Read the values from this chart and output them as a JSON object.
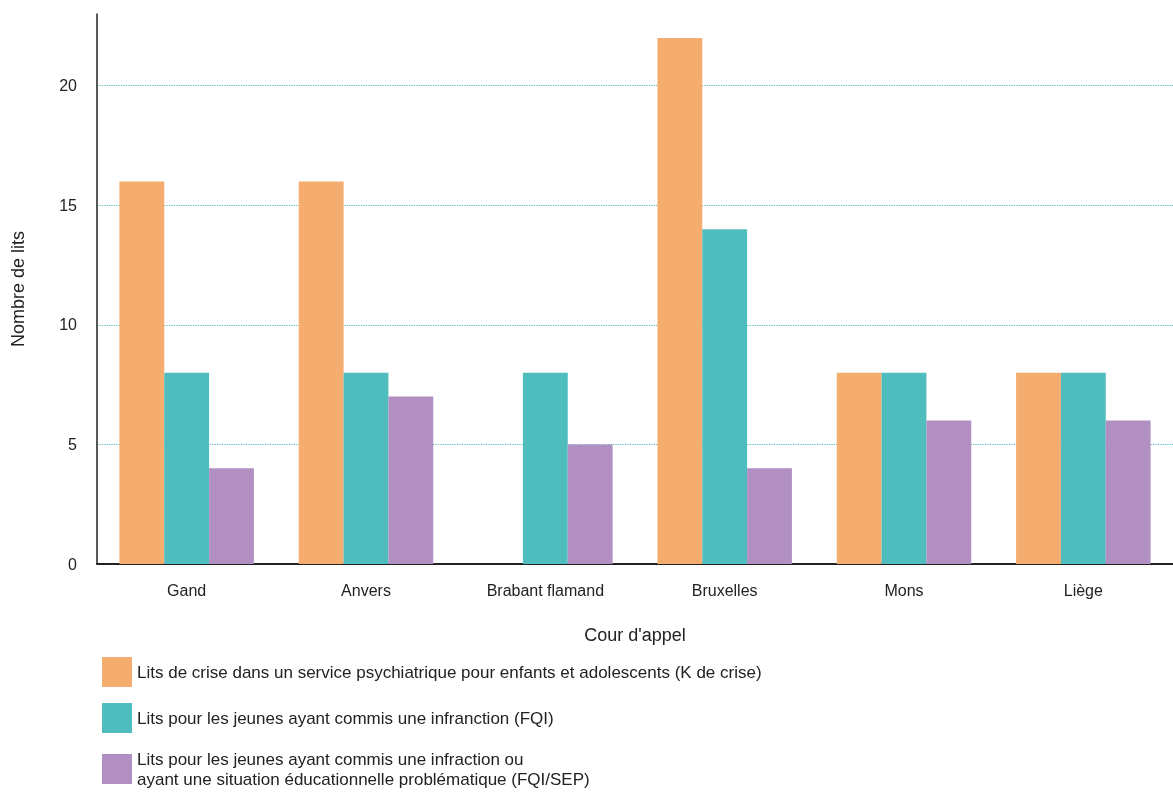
{
  "chart_data": {
    "type": "bar",
    "xlabel": "Cour d'appel",
    "ylabel": "Nombre de lits",
    "categories": [
      "Gand",
      "Anvers",
      "Brabant flamand",
      "Bruxelles",
      "Mons",
      "Liège"
    ],
    "series": [
      {
        "name": "Lits de crise dans un service psychiatrique pour enfants et adolescents (K de crise)",
        "color": "#f5ad6f",
        "values": [
          16,
          16,
          0,
          22,
          8,
          8
        ]
      },
      {
        "name": "Lits pour les jeunes ayant commis une infranction (FQI)",
        "color": "#4fbcbe",
        "values": [
          8,
          8,
          8,
          14,
          8,
          8
        ]
      },
      {
        "name": "Lits pour les jeunes ayant commis une infraction ou\nayant une situation éducationnelle problématique (FQI/SEP)",
        "color": "#b28fc3",
        "values": [
          4,
          7,
          5,
          4,
          6,
          6
        ]
      }
    ],
    "ylim": [
      0,
      23
    ],
    "yticks": [
      0,
      5,
      10,
      15,
      20
    ],
    "grid": "y",
    "legend": "bottom"
  }
}
